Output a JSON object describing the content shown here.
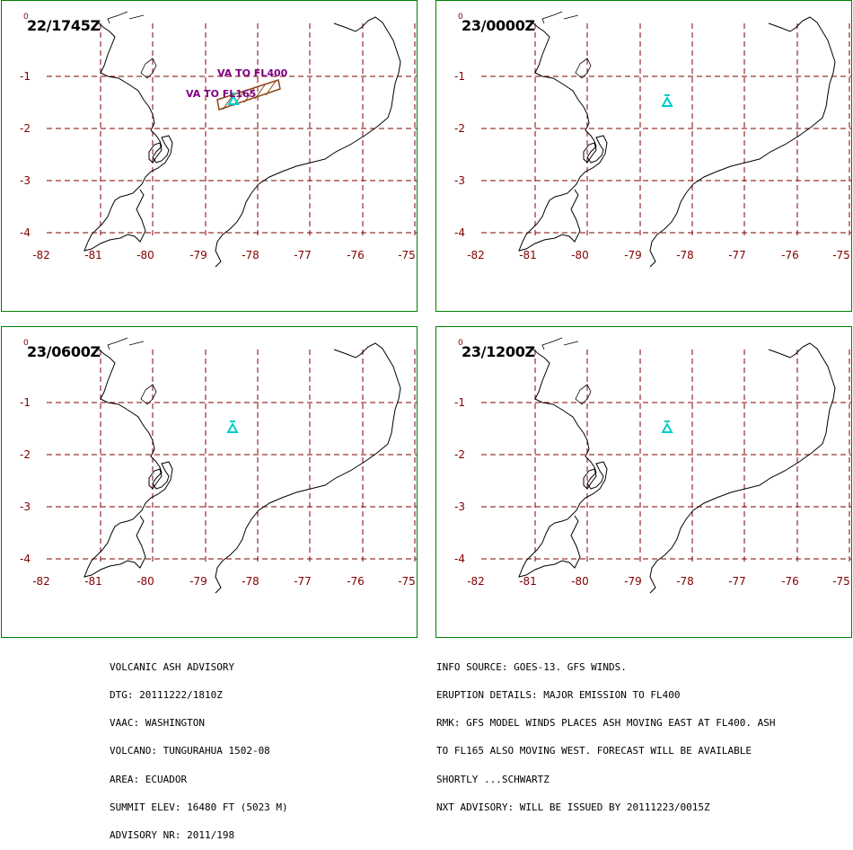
{
  "panels": [
    {
      "time": "22/1745Z",
      "va_labels": [
        "VA TO FL400",
        "VA TO FL165"
      ],
      "ash_polygon": true
    },
    {
      "time": "23/0000Z",
      "va_labels": [],
      "ash_polygon": false
    },
    {
      "time": "23/0600Z",
      "va_labels": [],
      "ash_polygon": false
    },
    {
      "time": "23/1200Z",
      "va_labels": [],
      "ash_polygon": false
    }
  ],
  "corner_label": "0",
  "lat_labels": [
    "-1",
    "-2",
    "-3",
    "-4"
  ],
  "lon_labels": [
    "-82",
    "-81",
    "-80",
    "-79",
    "-78",
    "-77",
    "-76",
    "-75"
  ],
  "advisory_left": [
    "VOLCANIC ASH ADVISORY",
    "DTG: 20111222/1810Z",
    "VAAC: WASHINGTON",
    "VOLCANO: TUNGURAHUA 1502-08",
    "AREA: ECUADOR",
    "SUMMIT ELEV: 16480 FT (5023 M)",
    "ADVISORY NR: 2011/198"
  ],
  "advisory_right": [
    "INFO SOURCE: GOES-13. GFS WINDS.",
    "ERUPTION DETAILS: MAJOR EMISSION TO FL400",
    "RMK: GFS MODEL WINDS PLACES ASH MOVING EAST AT FL400. ASH",
    "TO FL165 ALSO MOVING WEST. FORECAST WILL BE AVAILABLE",
    "SHORTLY ...SCHWARTZ",
    "NXT ADVISORY: WILL BE ISSUED BY 20111223/0015Z"
  ],
  "colors": {
    "frame": "#008000",
    "grid": "#800000",
    "coast": "#000000",
    "volcano": "#00cccc",
    "ash_outline": "#8b4513",
    "va_text": "#800080"
  },
  "icons": {
    "volcano": "volcano-triangle-icon"
  }
}
